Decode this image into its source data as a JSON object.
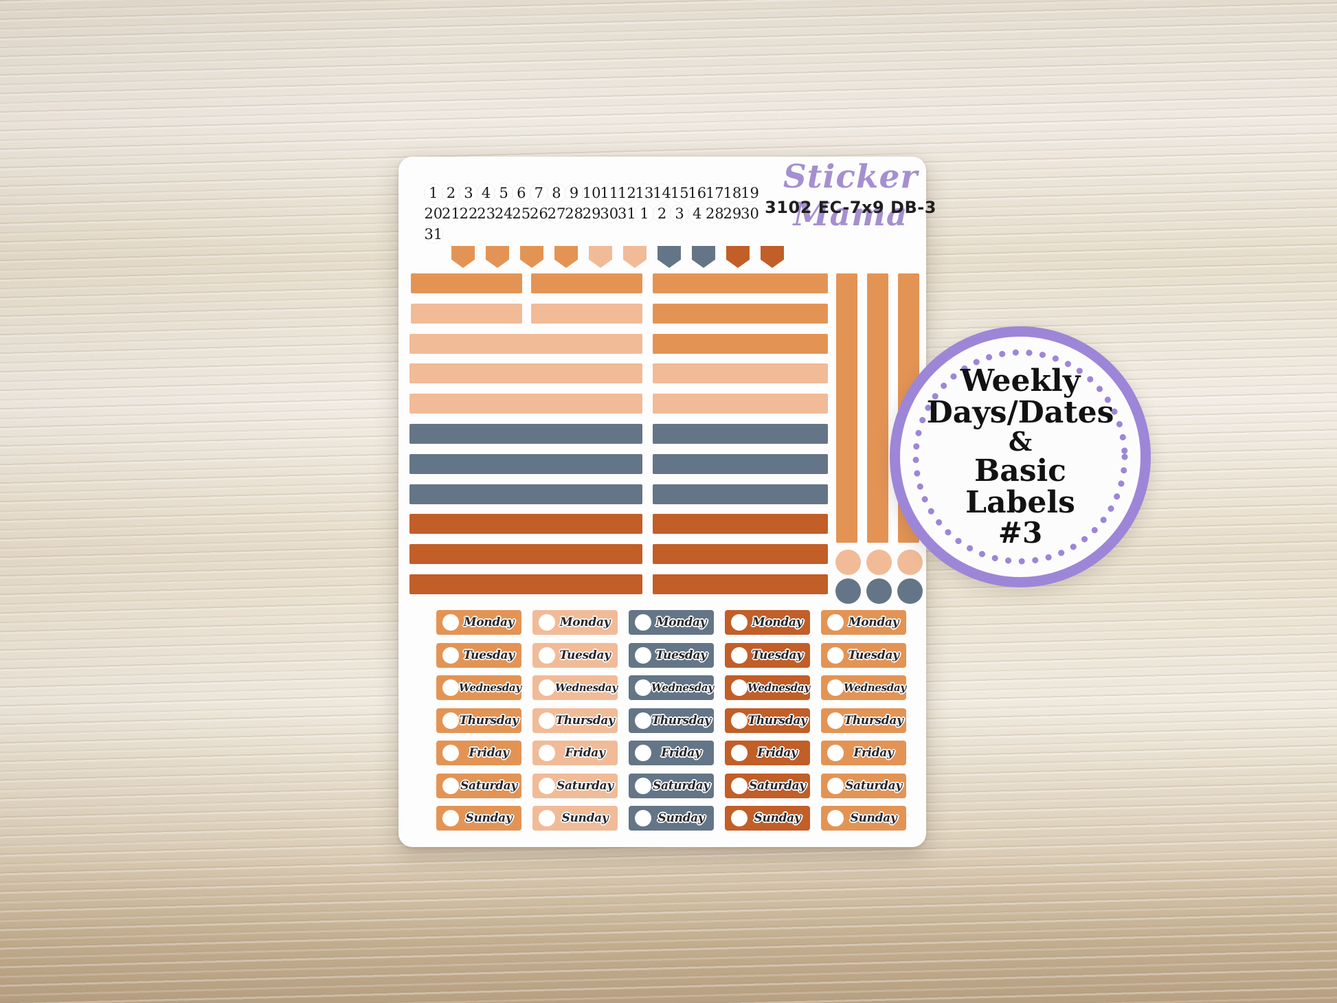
{
  "brand": {
    "name": "Sticker Mama",
    "product_code": "3102 EC-7x9 DB-3"
  },
  "badge": {
    "lines": [
      "Weekly",
      "Days/Dates",
      "&",
      "Basic",
      "Labels",
      "#3"
    ]
  },
  "date_numbers": {
    "rows": [
      [
        "1",
        "2",
        "3",
        "4",
        "5",
        "6",
        "7",
        "8",
        "9",
        "10",
        "11",
        "12",
        "13",
        "14",
        "15",
        "16",
        "17",
        "18",
        "19"
      ],
      [
        "20",
        "21",
        "22",
        "23",
        "24",
        "25",
        "26",
        "27",
        "28",
        "29",
        "30",
        "31",
        "1",
        "2",
        "3",
        "4",
        "28",
        "29",
        "30"
      ],
      [
        "31"
      ]
    ]
  },
  "flags": {
    "colors": [
      "orange",
      "orange",
      "orange",
      "orange",
      "peach",
      "peach",
      "gray",
      "gray",
      "rust",
      "rust"
    ]
  },
  "bars": {
    "rows": [
      {
        "left": [
          "orange",
          "orange"
        ],
        "right": "orange"
      },
      {
        "left": [
          "peach",
          "peach"
        ],
        "right": "orange"
      },
      {
        "left": [
          "peach"
        ],
        "right": "orange"
      },
      {
        "left": [
          "peach"
        ],
        "right": "peach"
      },
      {
        "left": [
          "peach"
        ],
        "right": "peach"
      },
      {
        "left": [
          "gray"
        ],
        "right": "gray"
      },
      {
        "left": [
          "gray"
        ],
        "right": "gray"
      },
      {
        "left": [
          "gray"
        ],
        "right": "gray"
      },
      {
        "left": [
          "rust"
        ],
        "right": "rust"
      },
      {
        "left": [
          "rust"
        ],
        "right": "rust"
      },
      {
        "left": [
          "rust"
        ],
        "right": "rust"
      }
    ]
  },
  "vertical_bars": {
    "colors": [
      "orange",
      "orange",
      "orange"
    ]
  },
  "dots": {
    "rows": [
      {
        "color": "peach",
        "count": 3
      },
      {
        "color": "gray",
        "count": 3
      }
    ]
  },
  "day_labels": {
    "days": [
      "Monday",
      "Tuesday",
      "Wednesday",
      "Thursday",
      "Friday",
      "Saturday",
      "Sunday"
    ],
    "column_colors": [
      "orange",
      "peach",
      "gray",
      "rust",
      "orange"
    ]
  },
  "palette": {
    "orange": "#e39455",
    "peach": "#f1bb98",
    "gray": "#647587",
    "rust": "#c25e28",
    "purple": "#a58fd0",
    "badge_purple": "#9d86d7",
    "ink": "#1f1f1f"
  }
}
